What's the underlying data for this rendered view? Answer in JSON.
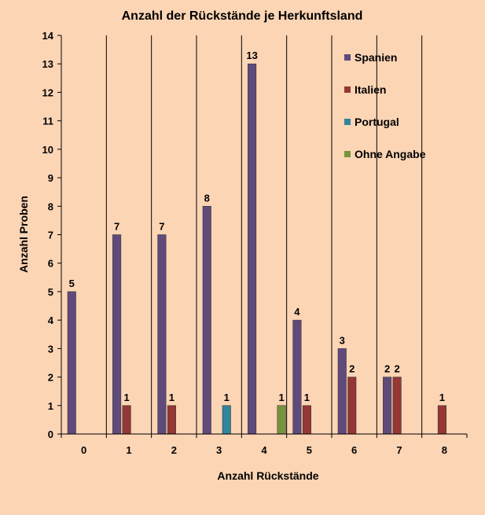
{
  "chart_data": {
    "type": "bar",
    "title": "Anzahl der Rückstände je Herkunftsland",
    "xlabel": "Anzahl Rückstände",
    "ylabel": "Anzahl Proben",
    "categories": [
      "0",
      "1",
      "2",
      "3",
      "4",
      "5",
      "6",
      "7",
      "8"
    ],
    "ylim": [
      0,
      14
    ],
    "yticks": [
      "0",
      "1",
      "2",
      "3",
      "4",
      "5",
      "6",
      "7",
      "8",
      "9",
      "10",
      "11",
      "12",
      "13",
      "14"
    ],
    "grid": "vertical",
    "legend_position": "top-right",
    "series": [
      {
        "name": "Spanien",
        "color": "#604a7b",
        "values": [
          5,
          7,
          7,
          8,
          13,
          4,
          3,
          2,
          null
        ],
        "labels": [
          "5",
          "7",
          "7",
          "8",
          "13",
          "4",
          "3",
          "2",
          null
        ]
      },
      {
        "name": "Italien",
        "color": "#953735",
        "values": [
          null,
          1,
          1,
          null,
          null,
          1,
          2,
          2,
          1
        ],
        "labels": [
          null,
          "1",
          "1",
          null,
          null,
          "1",
          "2",
          "2",
          "1"
        ]
      },
      {
        "name": "Portugal",
        "color": "#31859c",
        "values": [
          null,
          null,
          null,
          1,
          null,
          null,
          null,
          null,
          null
        ],
        "labels": [
          null,
          null,
          null,
          "1",
          null,
          null,
          null,
          null,
          null
        ]
      },
      {
        "name": "Ohne Angabe",
        "color": "#77933c",
        "values": [
          null,
          null,
          null,
          null,
          1,
          null,
          null,
          null,
          null
        ],
        "labels": [
          null,
          null,
          null,
          null,
          "1",
          null,
          null,
          null,
          null
        ]
      }
    ]
  }
}
